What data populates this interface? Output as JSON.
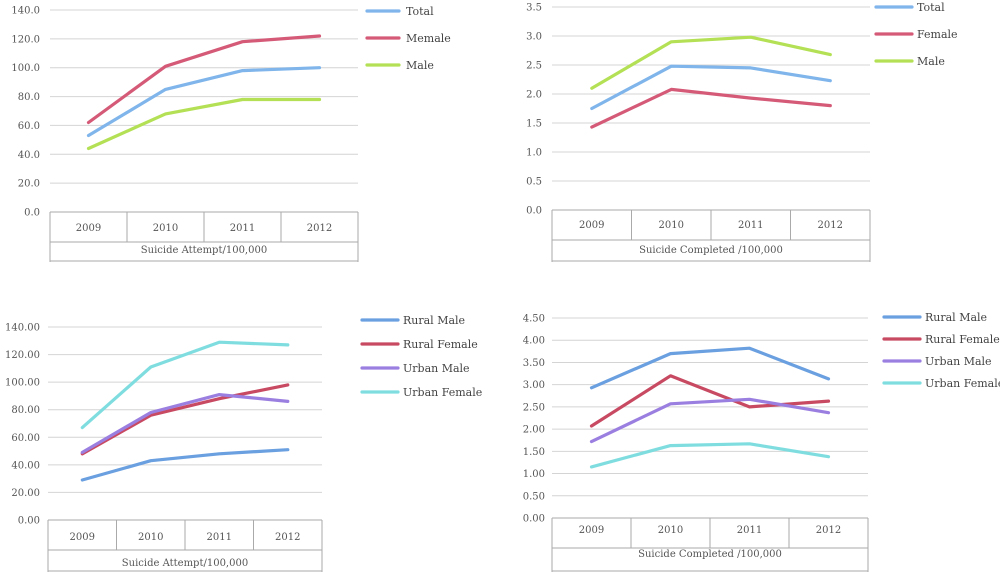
{
  "chart_data": [
    {
      "type": "line",
      "title": "",
      "xlabel": "Suicide Attempt/100,000",
      "ylabel": "",
      "categories": [
        "2009",
        "2010",
        "2011",
        "2012"
      ],
      "y_ticks": [
        "0.0",
        "20.0",
        "40.0",
        "60.0",
        "80.0",
        "100.0",
        "120.0",
        "140.0"
      ],
      "ylim": [
        0,
        140
      ],
      "grid": true,
      "legend_position": "right",
      "series": [
        {
          "name": "Total",
          "color": "#7fb5ea",
          "values": [
            53,
            85,
            98,
            100
          ]
        },
        {
          "name": "Memale",
          "color": "#d45a78",
          "values": [
            62,
            101,
            118,
            122
          ]
        },
        {
          "name": "Male",
          "color": "#b3e055",
          "values": [
            44,
            68,
            78,
            78
          ]
        }
      ]
    },
    {
      "type": "line",
      "title": "",
      "xlabel": "Suicide Completed /100,000",
      "ylabel": "",
      "categories": [
        "2009",
        "2010",
        "2011",
        "2012"
      ],
      "y_ticks": [
        "0.0",
        "0.5",
        "1.0",
        "1.5",
        "2.0",
        "2.5",
        "3.0",
        "3.5"
      ],
      "ylim": [
        0,
        3.5
      ],
      "grid": true,
      "legend_position": "right",
      "series": [
        {
          "name": "Total",
          "color": "#7fb5ea",
          "values": [
            1.75,
            2.48,
            2.45,
            2.23
          ]
        },
        {
          "name": "Female",
          "color": "#d45a78",
          "values": [
            1.43,
            2.08,
            1.93,
            1.8
          ]
        },
        {
          "name": "Male",
          "color": "#b3e055",
          "values": [
            2.1,
            2.9,
            2.98,
            2.68
          ]
        }
      ]
    },
    {
      "type": "line",
      "title": "",
      "xlabel": "Suicide Attempt/100,000",
      "ylabel": "",
      "categories": [
        "2009",
        "2010",
        "2011",
        "2012"
      ],
      "y_ticks": [
        "0.00",
        "20.00",
        "40.00",
        "60.00",
        "80.00",
        "100.00",
        "120.00",
        "140.00"
      ],
      "ylim": [
        0,
        140
      ],
      "grid": true,
      "legend_position": "right",
      "series": [
        {
          "name": "Rural Male",
          "color": "#6a9fe0",
          "values": [
            29,
            43,
            48,
            51
          ]
        },
        {
          "name": "Rural Female",
          "color": "#c84a62",
          "values": [
            48,
            76,
            88,
            98
          ]
        },
        {
          "name": "Urban Male",
          "color": "#9b7fe0",
          "values": [
            49,
            78,
            91,
            86
          ]
        },
        {
          "name": "Urban Female",
          "color": "#7fdde0",
          "values": [
            67,
            111,
            129,
            127
          ]
        }
      ]
    },
    {
      "type": "line",
      "title": "",
      "xlabel": "Suicide Completed /100,000",
      "ylabel": "",
      "categories": [
        "2009",
        "2010",
        "2011",
        "2012"
      ],
      "y_ticks": [
        "0.00",
        "0.50",
        "1.00",
        "1.50",
        "2.00",
        "2.50",
        "3.00",
        "3.50",
        "4.00",
        "4.50"
      ],
      "ylim": [
        0,
        4.5
      ],
      "grid": true,
      "legend_position": "right",
      "series": [
        {
          "name": "Rural Male",
          "color": "#6a9fe0",
          "values": [
            2.93,
            3.7,
            3.82,
            3.13
          ]
        },
        {
          "name": "Rural Female",
          "color": "#c84a62",
          "values": [
            2.07,
            3.2,
            2.5,
            2.63
          ]
        },
        {
          "name": "Urban Male",
          "color": "#9b7fe0",
          "values": [
            1.72,
            2.57,
            2.67,
            2.37
          ]
        },
        {
          "name": "Urban Female",
          "color": "#7fdde0",
          "values": [
            1.15,
            1.63,
            1.67,
            1.38
          ]
        }
      ]
    }
  ]
}
